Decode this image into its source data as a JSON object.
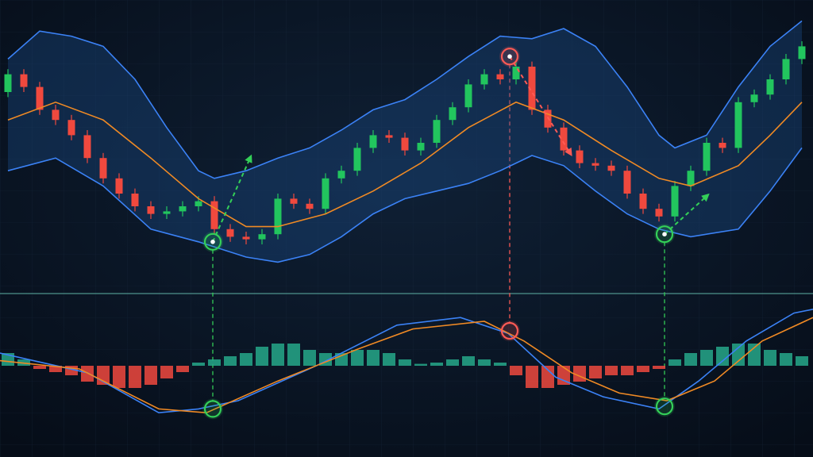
{
  "chart_data": [
    {
      "type": "candlestick",
      "xlim": [
        -0.5,
        50.7
      ],
      "ylim": [
        0,
        100
      ],
      "up_color": "#22c55e",
      "down_color": "#f0493e",
      "open": [
        70,
        77,
        72,
        63,
        59,
        53,
        44,
        36,
        30,
        25,
        22,
        23,
        25,
        27,
        16,
        13,
        12,
        14,
        28,
        26,
        24,
        36,
        39,
        48,
        53,
        52,
        47,
        50,
        59,
        64,
        73,
        77,
        75,
        80,
        63,
        56,
        47,
        42,
        41,
        39,
        30,
        24,
        21,
        33,
        39,
        50,
        48,
        66,
        69,
        75,
        83
      ],
      "high": [
        79,
        79,
        74,
        65,
        61,
        55,
        46,
        38,
        32,
        27,
        25,
        27,
        29,
        29,
        18,
        15,
        16,
        30,
        30,
        28,
        38,
        41,
        50,
        55,
        55,
        54,
        52,
        61,
        66,
        75,
        79,
        79,
        82,
        82,
        65,
        58,
        49,
        44,
        43,
        41,
        32,
        26,
        35,
        41,
        52,
        52,
        68,
        71,
        77,
        85,
        90
      ],
      "low": [
        68,
        70,
        61,
        57,
        51,
        42,
        34,
        28,
        23,
        20,
        20,
        21,
        23,
        14,
        11,
        10,
        10,
        12,
        24,
        22,
        22,
        34,
        37,
        46,
        50,
        45,
        45,
        48,
        57,
        62,
        71,
        73,
        73,
        61,
        54,
        45,
        40,
        39,
        37,
        28,
        22,
        19,
        19,
        31,
        37,
        46,
        46,
        64,
        67,
        73,
        81
      ],
      "close": [
        77,
        72,
        63,
        59,
        53,
        44,
        36,
        30,
        25,
        22,
        23,
        25,
        27,
        16,
        13,
        12,
        14,
        28,
        26,
        24,
        36,
        39,
        48,
        53,
        52,
        47,
        50,
        59,
        64,
        73,
        77,
        75,
        80,
        63,
        56,
        47,
        42,
        41,
        39,
        30,
        24,
        21,
        33,
        39,
        50,
        48,
        66,
        69,
        75,
        83,
        88
      ],
      "band_color": "#1d4f8f",
      "series": [
        {
          "color": "#3b82f6",
          "x": [
            0,
            2,
            4,
            6,
            8,
            10,
            12,
            13,
            15,
            17,
            19,
            21,
            23,
            25,
            27,
            29,
            31,
            33,
            35,
            37,
            39,
            41,
            42,
            44,
            46,
            48,
            50
          ],
          "values": [
            83,
            94,
            92,
            88,
            75,
            56,
            39,
            36,
            39,
            44,
            48,
            55,
            63,
            67,
            75,
            84,
            92,
            91,
            95,
            88,
            72,
            53,
            48,
            53,
            72,
            88,
            98
          ]
        },
        {
          "color": "#f08a24",
          "x": [
            0,
            3,
            6,
            9,
            12,
            15,
            17,
            20,
            23,
            26,
            29,
            32,
            35,
            38,
            41,
            43,
            46,
            48,
            50
          ],
          "values": [
            59,
            66,
            59,
            44,
            28,
            17,
            17,
            22,
            31,
            42,
            56,
            66,
            59,
            47,
            36,
            33,
            41,
            53,
            66
          ]
        },
        {
          "color": "#3b82f6",
          "x": [
            0,
            3,
            6,
            9,
            12,
            15,
            17,
            19,
            21,
            23,
            25,
            27,
            29,
            31,
            33,
            35,
            37,
            39,
            41,
            43,
            46,
            48,
            50
          ],
          "values": [
            39,
            44,
            33,
            16,
            11,
            5,
            3,
            6,
            13,
            22,
            28,
            31,
            34,
            39,
            45,
            41,
            31,
            22,
            16,
            13,
            16,
            31,
            48
          ]
        }
      ],
      "signals": [
        {
          "x": 12.9,
          "y": 11,
          "color": "#34d058",
          "arrow_to": [
            15.25,
            44
          ]
        },
        {
          "x": 31.6,
          "y": 84,
          "color": "#ff5a55",
          "arrow_to": [
            35.4,
            46
          ]
        },
        {
          "x": 41.35,
          "y": 14,
          "color": "#34d058",
          "arrow_to": [
            44,
            29
          ]
        }
      ]
    },
    {
      "type": "macd",
      "xlim": [
        -0.5,
        50.7
      ],
      "ylim": [
        -10,
        10
      ],
      "pos_color": "#26a88a",
      "neg_color": "#f0493e",
      "values": [
        2,
        1,
        -0.5,
        -1,
        -1.5,
        -2.5,
        -3,
        -3.5,
        -3.5,
        -3,
        -2,
        -1,
        0.5,
        1,
        1.5,
        2,
        3,
        3.5,
        3.5,
        2.5,
        2,
        2,
        2.5,
        2.5,
        2,
        1,
        0.3,
        0.5,
        1,
        1.5,
        1,
        0.5,
        -1.5,
        -3.5,
        -3.5,
        -3,
        -2.5,
        -2,
        -1.5,
        -1.5,
        -1,
        -0.5,
        1,
        2,
        2.5,
        3,
        3.5,
        3.5,
        2.5,
        2,
        1.5
      ],
      "series": [
        {
          "color": "#3b82f6",
          "x": [
            -0.5,
            5,
            9.5,
            12,
            14.5,
            19.5,
            24.5,
            28.5,
            31.5,
            34.5,
            37.5,
            41,
            43.5,
            46.5,
            49.5,
            50.7
          ],
          "values": [
            2,
            -1.1,
            -7.4,
            -6.8,
            -5.5,
            0.1,
            6.4,
            7.6,
            5.1,
            -1.8,
            -4.9,
            -6.8,
            -2.4,
            3.9,
            8.3,
            8.9
          ]
        },
        {
          "color": "#f08a24",
          "x": [
            -0.5,
            4.5,
            9.5,
            12.5,
            17,
            22,
            25.5,
            30,
            32.5,
            35.5,
            38.5,
            41.5,
            44.5,
            47.5,
            50.7
          ],
          "values": [
            0.8,
            -0.5,
            -6.8,
            -7.4,
            -2.4,
            2.6,
            5.8,
            7,
            3.9,
            -1.1,
            -4.3,
            -5.5,
            -2.4,
            3.9,
            7.6
          ]
        }
      ],
      "signals": [
        {
          "x": 12.9,
          "y": -6.8,
          "color": "#34d058"
        },
        {
          "x": 31.6,
          "y": 5.5,
          "color": "#ff5a55"
        },
        {
          "x": 41.35,
          "y": -6.4,
          "color": "#34d058"
        }
      ]
    }
  ]
}
